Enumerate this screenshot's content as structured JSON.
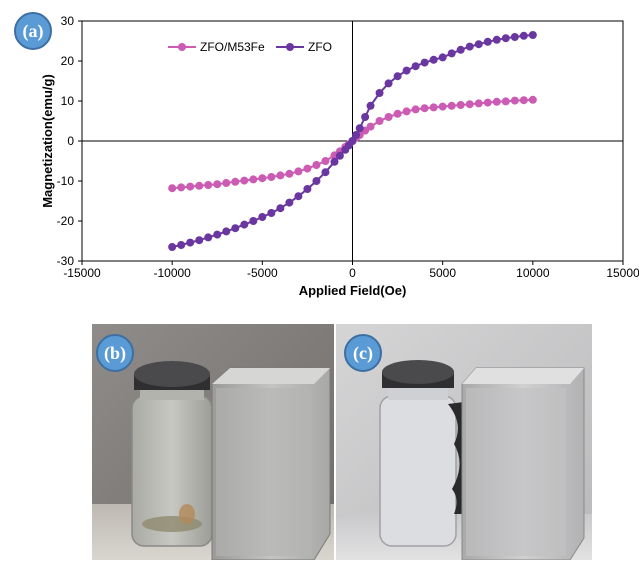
{
  "panels": {
    "a": "(a)",
    "b": "(b)",
    "c": "(c)"
  },
  "colors": {
    "zfo_m53fe": "#cc5bb3",
    "zfo": "#6a36a0",
    "badge": "#5b9bd5"
  },
  "chart_data": {
    "type": "line",
    "xlabel": "Applied Field(Oe)",
    "ylabel": "Magnetization(emu/g)",
    "xlim": [
      -15000,
      15000
    ],
    "ylim": [
      -30,
      30
    ],
    "xticks": [
      -15000,
      -10000,
      -5000,
      0,
      5000,
      10000,
      15000
    ],
    "yticks": [
      -30,
      -20,
      -10,
      0,
      10,
      20,
      30
    ],
    "legend_position": "top-left",
    "series": [
      {
        "name": "ZFO/M53Fe",
        "x": [
          -10000,
          -9500,
          -9000,
          -8500,
          -8000,
          -7500,
          -7000,
          -6500,
          -6000,
          -5500,
          -5000,
          -4500,
          -4000,
          -3500,
          -3000,
          -2500,
          -2000,
          -1500,
          -1000,
          -700,
          -400,
          -200,
          0,
          200,
          400,
          700,
          1000,
          1500,
          2000,
          2500,
          3000,
          3500,
          4000,
          4500,
          5000,
          5500,
          6000,
          6500,
          7000,
          7500,
          8000,
          8500,
          9000,
          9500,
          10000
        ],
        "y": [
          -11.8,
          -11.6,
          -11.4,
          -11.2,
          -11.0,
          -10.8,
          -10.5,
          -10.2,
          -9.9,
          -9.6,
          -9.3,
          -9.0,
          -8.6,
          -8.2,
          -7.6,
          -6.9,
          -6.0,
          -5.0,
          -3.6,
          -2.6,
          -1.5,
          -0.8,
          0,
          0.8,
          1.5,
          2.6,
          3.6,
          5.0,
          6.0,
          6.8,
          7.4,
          7.9,
          8.2,
          8.4,
          8.6,
          8.8,
          9.0,
          9.2,
          9.4,
          9.6,
          9.8,
          9.9,
          10.1,
          10.2,
          10.3
        ]
      },
      {
        "name": "ZFO",
        "x": [
          -10000,
          -9500,
          -9000,
          -8500,
          -8000,
          -7500,
          -7000,
          -6500,
          -6000,
          -5500,
          -5000,
          -4500,
          -4000,
          -3500,
          -3000,
          -2500,
          -2000,
          -1500,
          -1000,
          -700,
          -400,
          -200,
          0,
          200,
          400,
          700,
          1000,
          1500,
          2000,
          2500,
          3000,
          3500,
          4000,
          4500,
          5000,
          5500,
          6000,
          6500,
          7000,
          7500,
          8000,
          8500,
          9000,
          9500,
          10000
        ],
        "y": [
          -26.5,
          -26.0,
          -25.4,
          -24.8,
          -24.1,
          -23.4,
          -22.6,
          -21.8,
          -20.9,
          -20.0,
          -19.0,
          -18.0,
          -16.8,
          -15.4,
          -13.8,
          -12.0,
          -10.0,
          -7.8,
          -5.2,
          -3.7,
          -2.2,
          -1.1,
          0,
          1.5,
          3.2,
          6.0,
          8.8,
          12.0,
          14.4,
          16.2,
          17.6,
          18.7,
          19.6,
          20.3,
          20.9,
          21.9,
          22.8,
          23.6,
          24.2,
          24.8,
          25.3,
          25.7,
          26.0,
          26.3,
          26.5
        ]
      }
    ]
  }
}
